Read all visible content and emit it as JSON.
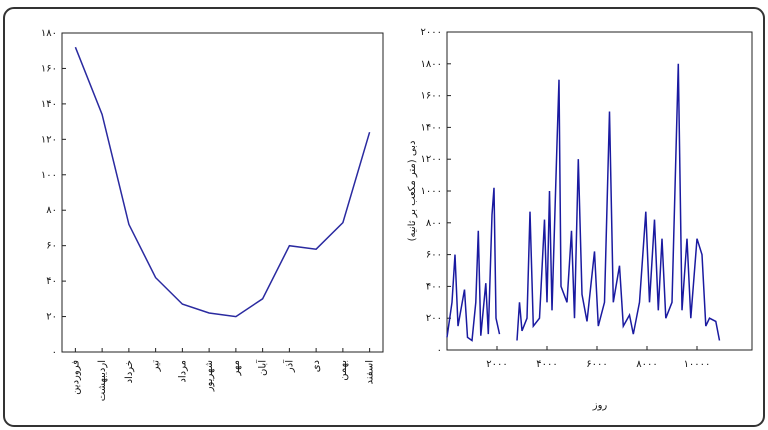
{
  "chart_data": [
    {
      "type": "line",
      "categories": [
        "فروردین",
        "اردیبهشت",
        "خرداد",
        "تیر",
        "مرداد",
        "شهریور",
        "مهر",
        "آبان",
        "آذر",
        "دی",
        "بهمن",
        "اسفند"
      ],
      "values": [
        172,
        134,
        72,
        42,
        27,
        22,
        20,
        30,
        60,
        58,
        73,
        124
      ],
      "color": "#2a2aa0",
      "ylim": [
        0,
        180
      ],
      "yticks": [
        {
          "value": 0,
          "label": "۰"
        },
        {
          "value": 20,
          "label": "۲۰"
        },
        {
          "value": 40,
          "label": "۴۰"
        },
        {
          "value": 60,
          "label": "۶۰"
        },
        {
          "value": 80,
          "label": "۸۰"
        },
        {
          "value": 100,
          "label": "۱۰۰"
        },
        {
          "value": 120,
          "label": "۱۲۰"
        },
        {
          "value": 140,
          "label": "۱۴۰"
        },
        {
          "value": 160,
          "label": "۱۶۰"
        },
        {
          "value": 180,
          "label": "۱۸۰"
        }
      ]
    },
    {
      "type": "line",
      "x_label": "روز",
      "y_label": "دبی (متر مکعب بر ثانیه)",
      "x": [
        0,
        200,
        320,
        440,
        700,
        820,
        1000,
        1150,
        1250,
        1350,
        1550,
        1650,
        1800,
        1880,
        1960,
        2100,
        2200,
        2800,
        2900,
        3000,
        3200,
        3320,
        3450,
        3700,
        3900,
        4000,
        4100,
        4200,
        4400,
        4480,
        4560,
        4800,
        4980,
        5100,
        5250,
        5400,
        5600,
        5900,
        6050,
        6300,
        6500,
        6650,
        6900,
        7050,
        7300,
        7450,
        7700,
        7950,
        8100,
        8300,
        8450,
        8600,
        8750,
        9000,
        9250,
        9400,
        9600,
        9750,
        10000,
        10200,
        10350,
        10500,
        10750,
        10900
      ],
      "values": [
        80,
        300,
        600,
        150,
        380,
        80,
        60,
        300,
        750,
        90,
        420,
        100,
        850,
        1020,
        200,
        100,
        null,
        60,
        300,
        120,
        200,
        870,
        150,
        200,
        820,
        300,
        1000,
        250,
        1300,
        1700,
        400,
        300,
        750,
        200,
        1200,
        350,
        180,
        620,
        150,
        300,
        1500,
        300,
        530,
        150,
        220,
        100,
        300,
        870,
        300,
        820,
        250,
        700,
        200,
        300,
        1800,
        250,
        700,
        200,
        700,
        600,
        150,
        200,
        180,
        60
      ],
      "color": "#1a1aa0",
      "xlim": [
        0,
        12200
      ],
      "xticks": [
        {
          "value": 2000,
          "label": "۲۰۰۰"
        },
        {
          "value": 4000,
          "label": "۴۰۰۰"
        },
        {
          "value": 6000,
          "label": "۶۰۰۰"
        },
        {
          "value": 8000,
          "label": "۸۰۰۰"
        },
        {
          "value": 10000,
          "label": "۱۰۰۰۰"
        }
      ],
      "ylim": [
        0,
        2000
      ],
      "yticks": [
        {
          "value": 0,
          "label": "۰"
        },
        {
          "value": 200,
          "label": "۲۰۰"
        },
        {
          "value": 400,
          "label": "۴۰۰"
        },
        {
          "value": 600,
          "label": "۶۰۰"
        },
        {
          "value": 800,
          "label": "۸۰۰"
        },
        {
          "value": 1000,
          "label": "۱۰۰۰"
        },
        {
          "value": 1200,
          "label": "۱۲۰۰"
        },
        {
          "value": 1400,
          "label": "۱۴۰۰"
        },
        {
          "value": 1600,
          "label": "۱۶۰۰"
        },
        {
          "value": 1800,
          "label": "۱۸۰۰"
        },
        {
          "value": 2000,
          "label": "۲۰۰۰"
        }
      ]
    }
  ]
}
